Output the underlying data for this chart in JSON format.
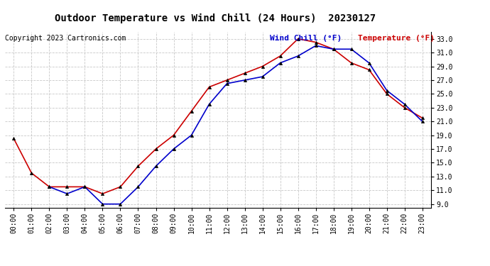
{
  "title": "Outdoor Temperature vs Wind Chill (24 Hours)  20230127",
  "copyright": "Copyright 2023 Cartronics.com",
  "legend_wind_chill": "Wind Chill (°F)",
  "legend_temperature": "Temperature (°F)",
  "hours": [
    "00:00",
    "01:00",
    "02:00",
    "03:00",
    "04:00",
    "05:00",
    "06:00",
    "07:00",
    "08:00",
    "09:00",
    "10:00",
    "11:00",
    "12:00",
    "13:00",
    "14:00",
    "15:00",
    "16:00",
    "17:00",
    "18:00",
    "19:00",
    "20:00",
    "21:00",
    "22:00",
    "23:00"
  ],
  "temperature": [
    18.5,
    13.5,
    11.5,
    11.5,
    11.5,
    10.5,
    11.5,
    14.5,
    17.0,
    19.0,
    22.5,
    26.0,
    27.0,
    28.0,
    29.0,
    30.5,
    33.0,
    32.5,
    31.5,
    29.5,
    28.5,
    25.0,
    23.0,
    21.5
  ],
  "wind_chill": [
    null,
    null,
    11.5,
    10.5,
    11.5,
    9.0,
    9.0,
    11.5,
    14.5,
    17.0,
    19.0,
    23.5,
    26.5,
    27.0,
    27.5,
    29.5,
    30.5,
    32.0,
    31.5,
    31.5,
    29.5,
    25.5,
    23.5,
    21.0
  ],
  "temp_color": "#cc0000",
  "wind_chill_color": "#0000cc",
  "marker_color": "black",
  "ylim_min": 8.5,
  "ylim_max": 34.0,
  "yticks": [
    9.0,
    11.0,
    13.0,
    15.0,
    17.0,
    19.0,
    21.0,
    23.0,
    25.0,
    27.0,
    29.0,
    31.0,
    33.0
  ],
  "background_color": "#ffffff",
  "grid_color": "#c8c8c8",
  "title_fontsize": 10,
  "copyright_fontsize": 7,
  "legend_fontsize": 8,
  "tick_fontsize": 7,
  "ytick_fontsize": 7
}
